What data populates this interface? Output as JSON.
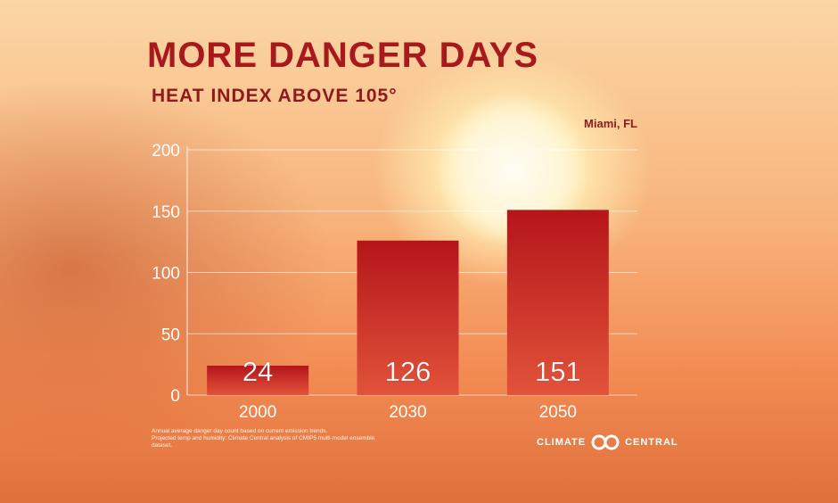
{
  "chart_data": {
    "type": "bar",
    "title": "MORE DANGER DAYS",
    "subtitle": "HEAT INDEX ABOVE 105°",
    "location": "Miami, FL",
    "categories": [
      "2000",
      "2030",
      "2050"
    ],
    "values": [
      24,
      126,
      151
    ],
    "ylim": [
      0,
      200
    ],
    "yticks": [
      0,
      50,
      100,
      150,
      200
    ],
    "xlabel": "",
    "ylabel": "",
    "grid": true,
    "bar_color_top": "#b5151a",
    "bar_color_bottom": "#e2533a"
  },
  "footnote": {
    "line1": "Annual average danger day count based on current emission trends.",
    "line2": "Projected temp and humidity: Climate Central analysis of CMIP5 multi-model ensemble",
    "line3": "dataset."
  },
  "brand": {
    "left": "CLIMATE",
    "right": "CENTRAL"
  }
}
